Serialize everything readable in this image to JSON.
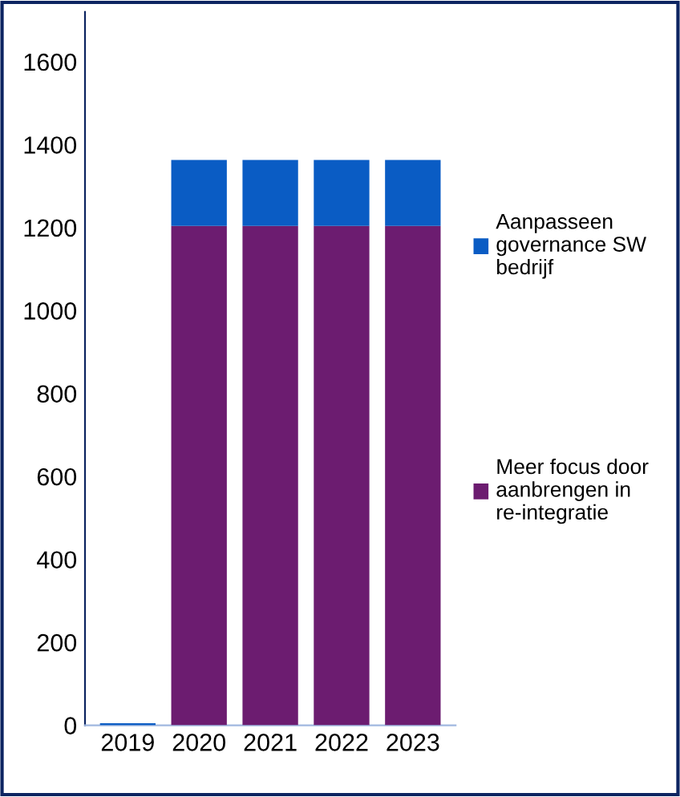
{
  "chart_data": {
    "type": "bar",
    "stacked": true,
    "categories": [
      "2019",
      "2020",
      "2021",
      "2022",
      "2023"
    ],
    "series": [
      {
        "name": "Meer focus door aanbrengen in re-integratie",
        "color": "#6c1c70",
        "values": [
          0,
          1204,
          1204,
          1204,
          1204
        ]
      },
      {
        "name": "Aanpasseen governance SW bedrijf",
        "color": "#0a5cc4",
        "values": [
          5,
          159,
          159,
          159,
          159
        ]
      }
    ],
    "ylim": [
      0,
      1720
    ],
    "yticks": [
      0,
      200,
      400,
      600,
      800,
      1000,
      1200,
      1400,
      1600
    ],
    "grid": false,
    "legend": "right"
  }
}
